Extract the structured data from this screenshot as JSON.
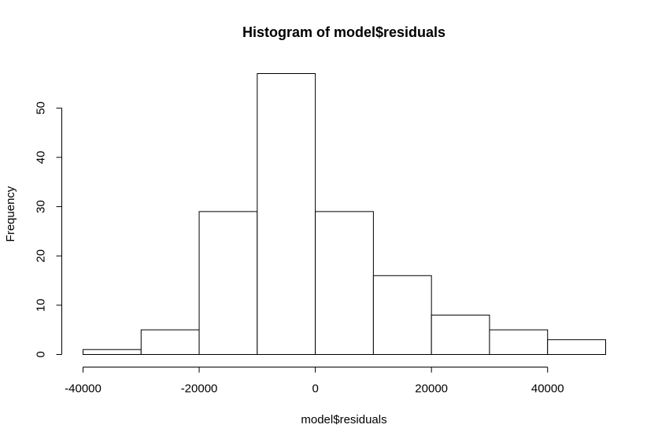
{
  "chart_data": {
    "type": "bar",
    "title": "Histogram of model$residuals",
    "xlabel": "model$residuals",
    "ylabel": "Frequency",
    "bins": [
      {
        "start": -40000,
        "end": -30000,
        "count": 1
      },
      {
        "start": -30000,
        "end": -20000,
        "count": 5
      },
      {
        "start": -20000,
        "end": -10000,
        "count": 29
      },
      {
        "start": -10000,
        "end": 0,
        "count": 57
      },
      {
        "start": 0,
        "end": 10000,
        "count": 29
      },
      {
        "start": 10000,
        "end": 20000,
        "count": 16
      },
      {
        "start": 20000,
        "end": 30000,
        "count": 8
      },
      {
        "start": 30000,
        "end": 40000,
        "count": 5
      },
      {
        "start": 40000,
        "end": 50000,
        "count": 3
      }
    ],
    "xlim": [
      -40000,
      50000
    ],
    "ylim": [
      0,
      57
    ],
    "x_ticks": [
      -40000,
      -20000,
      0,
      20000,
      40000
    ],
    "x_tick_labels": [
      "-40000",
      "-20000",
      "0",
      "20000",
      "40000"
    ],
    "y_ticks": [
      0,
      10,
      20,
      30,
      40,
      50
    ],
    "y_tick_labels": [
      "0",
      "10",
      "20",
      "30",
      "40",
      "50"
    ],
    "grid": false,
    "legend": "none",
    "colors": {
      "bar_fill": "#ffffff",
      "bar_stroke": "#000000"
    }
  }
}
